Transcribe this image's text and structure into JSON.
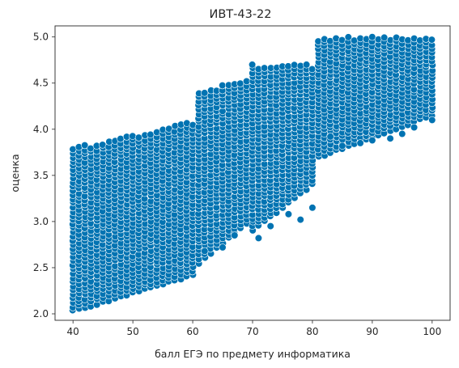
{
  "chart_data": {
    "type": "scatter",
    "title": "ИВТ-43-22",
    "xlabel": "балл ЕГЭ по предмету информатика",
    "ylabel": "оценка",
    "xlim": [
      37.0,
      103.0
    ],
    "ylim": [
      1.93,
      5.12
    ],
    "x_ticks": [
      40,
      50,
      60,
      70,
      80,
      90,
      100
    ],
    "x_tick_labels": [
      "40",
      "50",
      "60",
      "70",
      "80",
      "90",
      "100"
    ],
    "y_ticks": [
      2.0,
      2.5,
      3.0,
      3.5,
      4.0,
      4.5,
      5.0
    ],
    "y_tick_labels": [
      "2.0",
      "2.5",
      "3.0",
      "3.5",
      "4.0",
      "4.5",
      "5.0"
    ],
    "grid": false,
    "legend": "none",
    "marker_color": "#0173b2",
    "marker_edge_color": "#ffffff",
    "bands": [
      {
        "x_start": 40,
        "x_end": 60,
        "y_min_start": 2.03,
        "y_min_end": 2.42,
        "y_max_start": 3.8,
        "y_max_end": 4.08
      },
      {
        "x_start": 61,
        "x_end": 69,
        "y_min_start": 2.55,
        "y_min_end": 2.98,
        "y_max_start": 4.42,
        "y_max_end": 4.53
      },
      {
        "x_start": 70,
        "x_end": 80,
        "y_min_start": 2.9,
        "y_min_end": 3.4,
        "y_max_start": 4.7,
        "y_max_end": 4.7
      },
      {
        "x_start": 81,
        "x_end": 100,
        "y_min_start": 3.7,
        "y_min_end": 4.15,
        "y_max_start": 5.0,
        "y_max_end": 5.0
      }
    ],
    "outliers": [
      {
        "x": 71,
        "y": 2.82
      },
      {
        "x": 73,
        "y": 2.95
      },
      {
        "x": 76,
        "y": 3.08
      },
      {
        "x": 78,
        "y": 3.02
      },
      {
        "x": 80,
        "y": 3.15
      },
      {
        "x": 83,
        "y": 3.92
      },
      {
        "x": 85,
        "y": 3.82
      },
      {
        "x": 88,
        "y": 3.85
      },
      {
        "x": 90,
        "y": 3.88
      },
      {
        "x": 93,
        "y": 3.9
      },
      {
        "x": 95,
        "y": 3.95
      },
      {
        "x": 97,
        "y": 4.02
      },
      {
        "x": 100,
        "y": 4.1
      },
      {
        "x": 62,
        "y": 2.68
      },
      {
        "x": 65,
        "y": 2.72
      },
      {
        "x": 67,
        "y": 2.85
      }
    ]
  }
}
